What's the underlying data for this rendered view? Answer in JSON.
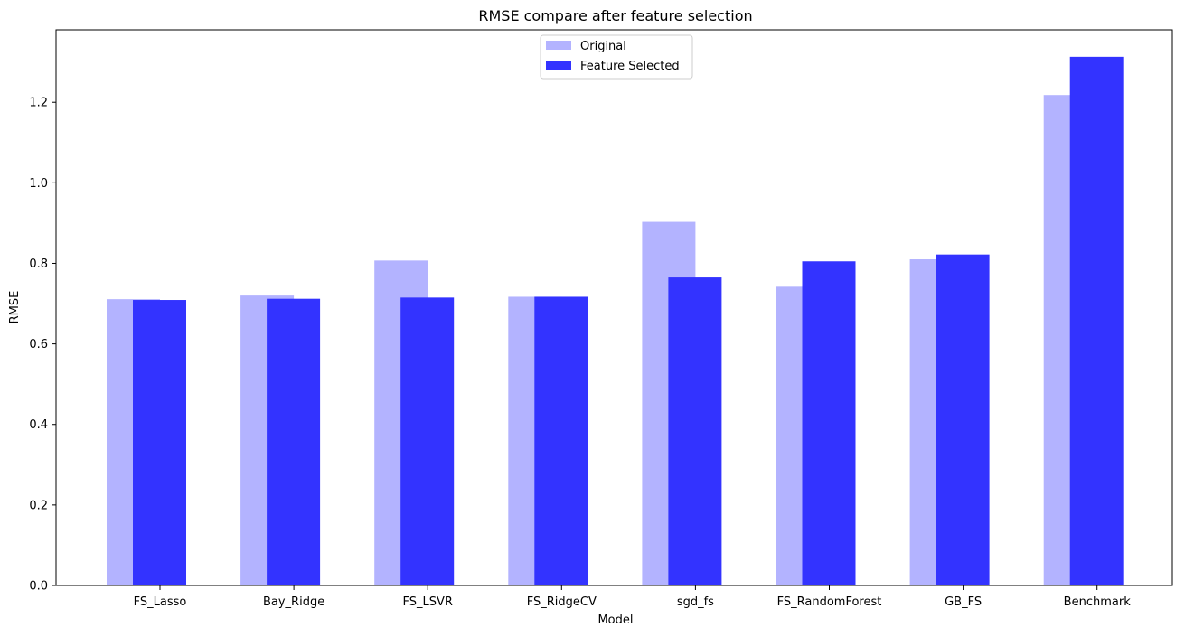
{
  "chart_data": {
    "type": "bar",
    "title": "RMSE compare after feature selection",
    "xlabel": "Model",
    "ylabel": "RMSE",
    "categories": [
      "FS_Lasso",
      "Bay_Ridge",
      "FS_LSVR",
      "FS_RidgeCV",
      "sgd_fs",
      "FS_RandomForest",
      "GB_FS",
      "Benchmark"
    ],
    "series": [
      {
        "name": "Original",
        "color": "#b3b3ff",
        "values": [
          0.711,
          0.72,
          0.807,
          0.717,
          0.903,
          0.742,
          0.81,
          1.218
        ]
      },
      {
        "name": "Feature Selected",
        "color": "#3333ff",
        "values": [
          0.709,
          0.712,
          0.715,
          0.717,
          0.765,
          0.805,
          0.822,
          1.313
        ]
      }
    ],
    "ylim": [
      0,
      1.38
    ],
    "yticks": [
      "0.0",
      "0.2",
      "0.4",
      "0.6",
      "0.8",
      "1.0",
      "1.2"
    ],
    "grid": false,
    "legend_position": "upper center"
  }
}
